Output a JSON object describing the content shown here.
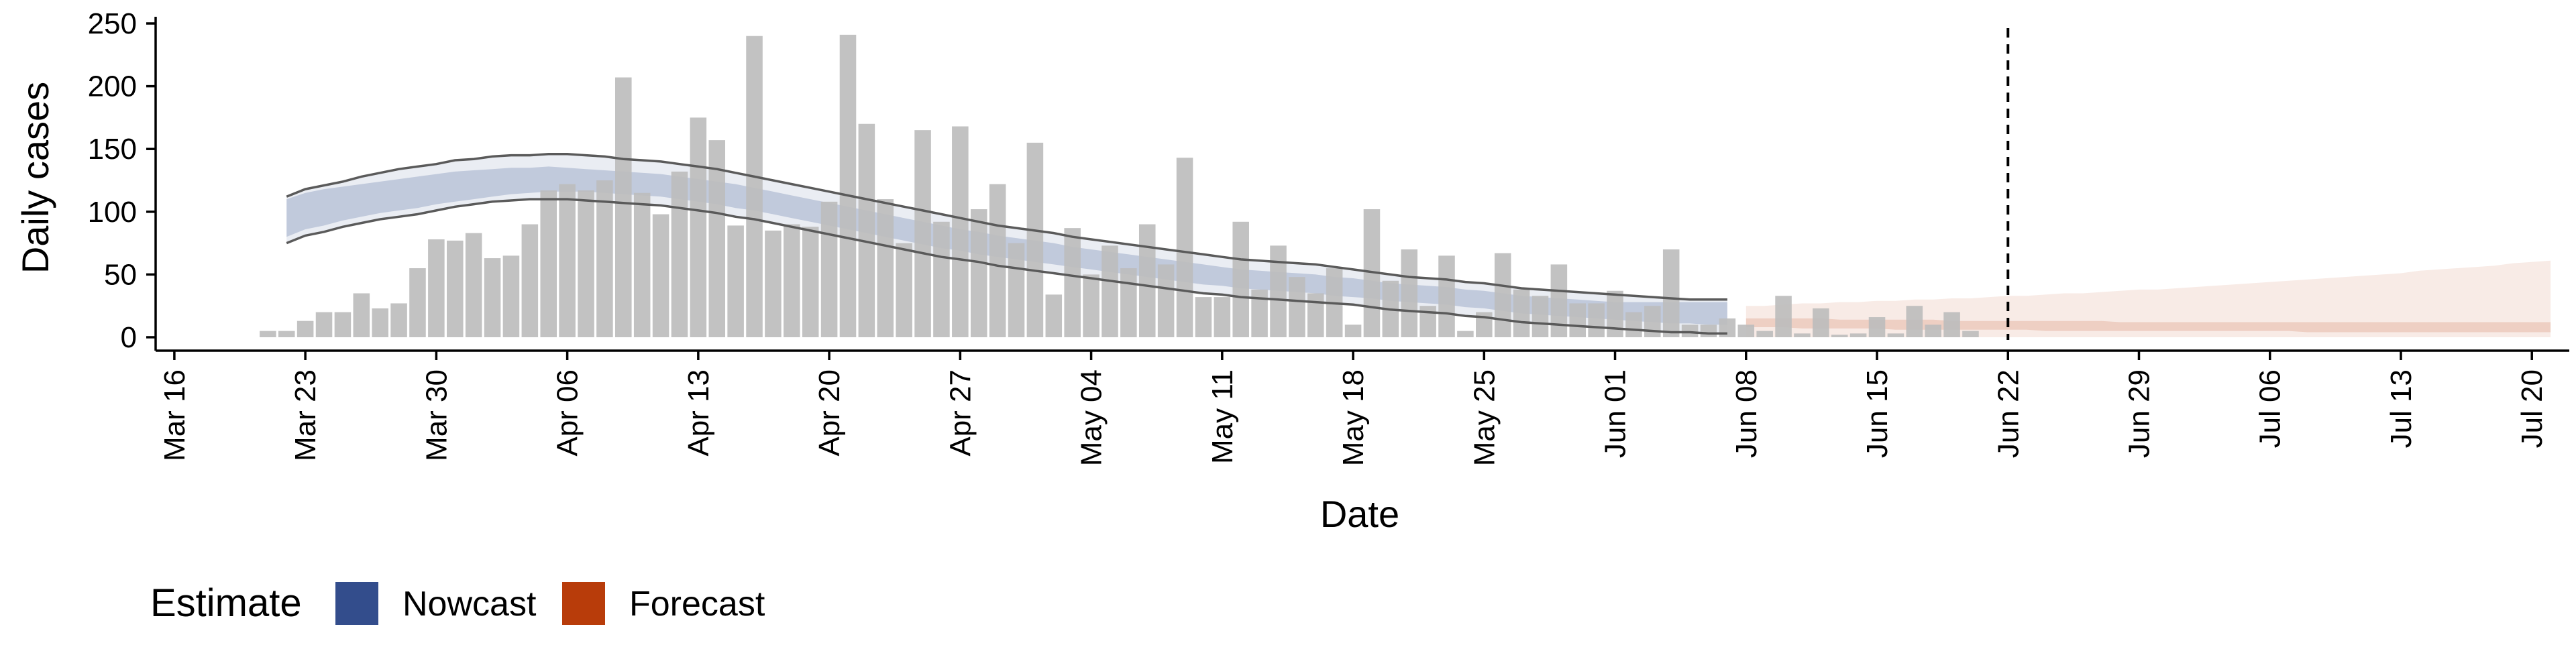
{
  "colors": {
    "bars": "#bdbdbd",
    "nowcast": "#334d8c",
    "forecast": "#b83c0a",
    "rt_line": "#5a5a5a",
    "vline": "#000000"
  },
  "chart_data": {
    "type": "bar",
    "xlabel": "Date",
    "ylabel": "Daily cases",
    "ylim": [
      0,
      250
    ],
    "y_ticks": [
      0,
      50,
      100,
      150,
      200,
      250
    ],
    "xlim": [
      "2020-03-15",
      "2020-07-22"
    ],
    "x_ticks": [
      "2020-03-16",
      "2020-03-23",
      "2020-03-30",
      "2020-04-06",
      "2020-04-13",
      "2020-04-20",
      "2020-04-27",
      "2020-05-04",
      "2020-05-11",
      "2020-05-18",
      "2020-05-25",
      "2020-06-01",
      "2020-06-08",
      "2020-06-15",
      "2020-06-22",
      "2020-06-29",
      "2020-07-06",
      "2020-07-13",
      "2020-07-20"
    ],
    "x_tick_labels": [
      "Mar 16",
      "Mar 23",
      "Mar 30",
      "Apr 06",
      "Apr 13",
      "Apr 20",
      "Apr 27",
      "May 04",
      "May 11",
      "May 18",
      "May 25",
      "Jun 01",
      "Jun 08",
      "Jun 15",
      "Jun 22",
      "Jun 29",
      "Jul 06",
      "Jul 13",
      "Jul 20"
    ],
    "grid": false,
    "vline_date": "2020-06-22",
    "legend": {
      "title": "Estimate",
      "position": "bottom-left",
      "items": [
        {
          "label": "Nowcast",
          "color": "#334d8c"
        },
        {
          "label": "Forecast",
          "color": "#b83c0a"
        }
      ]
    },
    "bars": {
      "start_date": "2020-03-21",
      "values": [
        5,
        5,
        13,
        20,
        20,
        35,
        23,
        27,
        55,
        78,
        77,
        83,
        63,
        65,
        90,
        117,
        122,
        117,
        125,
        207,
        115,
        98,
        132,
        175,
        157,
        89,
        240,
        85,
        90,
        88,
        108,
        241,
        170,
        110,
        75,
        165,
        92,
        168,
        102,
        122,
        75,
        155,
        34,
        87,
        50,
        73,
        55,
        90,
        58,
        143,
        32,
        32,
        92,
        38,
        73,
        48,
        35,
        55,
        10,
        102,
        45,
        70,
        25,
        65,
        5,
        20,
        67,
        38,
        33,
        58,
        27,
        27,
        37,
        20,
        25,
        70,
        10,
        10,
        15,
        10,
        5,
        33,
        3,
        23,
        2,
        3,
        16,
        3,
        25,
        10,
        20,
        5
      ]
    },
    "series": [
      {
        "name": "Nowcast",
        "start_date": "2020-03-22",
        "median": [
          95,
          100,
          103,
          106,
          109,
          111,
          113,
          115,
          118,
          120,
          121,
          123,
          124,
          124,
          125,
          125,
          124,
          123,
          122,
          121,
          120,
          119,
          117,
          115,
          112,
          110,
          107,
          104,
          101,
          98,
          95,
          92,
          89,
          86,
          83,
          80,
          77,
          75,
          72,
          70,
          68,
          66,
          64,
          62,
          60,
          58,
          56,
          54,
          52,
          50,
          48,
          46,
          45,
          44,
          43,
          42,
          40,
          39,
          37,
          35,
          34,
          33,
          32,
          30,
          29,
          27,
          25,
          24,
          23,
          22,
          21,
          20,
          20,
          19,
          19,
          19,
          18,
          18
        ],
        "band_low": [
          80,
          86,
          89,
          93,
          96,
          99,
          101,
          103,
          106,
          108,
          110,
          112,
          114,
          115,
          116,
          116,
          116,
          115,
          114,
          113,
          112,
          110,
          108,
          106,
          103,
          101,
          98,
          95,
          92,
          89,
          86,
          83,
          80,
          77,
          74,
          71,
          69,
          66,
          64,
          62,
          60,
          58,
          56,
          54,
          52,
          50,
          48,
          46,
          44,
          42,
          41,
          39,
          38,
          37,
          36,
          35,
          33,
          32,
          31,
          29,
          28,
          27,
          26,
          24,
          23,
          21,
          19,
          18,
          17,
          16,
          15,
          14,
          13,
          12,
          11,
          11,
          10,
          10
        ],
        "band_high": [
          110,
          115,
          118,
          120,
          122,
          124,
          126,
          128,
          130,
          132,
          133,
          134,
          135,
          135,
          136,
          135,
          134,
          133,
          132,
          131,
          130,
          128,
          126,
          124,
          122,
          119,
          116,
          113,
          110,
          107,
          104,
          101,
          98,
          95,
          92,
          89,
          86,
          84,
          81,
          79,
          77,
          75,
          72,
          70,
          68,
          66,
          64,
          62,
          60,
          58,
          56,
          54,
          53,
          52,
          51,
          50,
          48,
          47,
          45,
          43,
          42,
          41,
          40,
          38,
          37,
          35,
          33,
          32,
          31,
          30,
          29,
          28,
          28,
          28,
          28,
          28,
          28,
          28
        ],
        "outer_low": [
          75,
          81,
          84,
          88,
          91,
          94,
          96,
          98,
          101,
          104,
          106,
          108,
          109,
          110,
          110,
          110,
          109,
          108,
          107,
          106,
          105,
          103,
          101,
          99,
          96,
          94,
          91,
          88,
          85,
          82,
          79,
          76,
          73,
          70,
          67,
          64,
          62,
          60,
          57,
          55,
          53,
          51,
          49,
          47,
          45,
          43,
          41,
          39,
          37,
          35,
          34,
          32,
          31,
          30,
          29,
          28,
          27,
          26,
          24,
          22,
          21,
          20,
          19,
          17,
          16,
          14,
          12,
          11,
          10,
          9,
          8,
          7,
          6,
          5,
          4,
          4,
          3,
          3
        ],
        "outer_high": [
          112,
          118,
          121,
          124,
          128,
          131,
          134,
          136,
          138,
          141,
          142,
          144,
          145,
          145,
          146,
          146,
          145,
          144,
          142,
          141,
          140,
          138,
          136,
          134,
          131,
          128,
          125,
          122,
          119,
          116,
          113,
          110,
          107,
          104,
          101,
          98,
          95,
          92,
          89,
          87,
          85,
          83,
          80,
          78,
          76,
          74,
          72,
          70,
          68,
          66,
          64,
          62,
          61,
          60,
          59,
          58,
          56,
          54,
          52,
          50,
          48,
          47,
          46,
          44,
          43,
          41,
          39,
          38,
          37,
          36,
          35,
          34,
          33,
          32,
          31,
          30,
          30,
          30
        ]
      },
      {
        "name": "Forecast",
        "start_date": "2020-06-08",
        "median": [
          12,
          12,
          11,
          11,
          11,
          10,
          10,
          10,
          10,
          10,
          9,
          9,
          9,
          9,
          9,
          9,
          9,
          8,
          8,
          8,
          8,
          8,
          8,
          8,
          8,
          8,
          8,
          8,
          8,
          8,
          8,
          8,
          8,
          7,
          7,
          7,
          7,
          7,
          7,
          7,
          7,
          7,
          7,
          7
        ],
        "band_low": [
          8,
          8,
          8,
          7,
          7,
          7,
          7,
          7,
          6,
          6,
          6,
          6,
          6,
          6,
          6,
          6,
          5,
          5,
          5,
          5,
          5,
          5,
          5,
          5,
          5,
          5,
          5,
          5,
          5,
          5,
          4,
          4,
          4,
          4,
          4,
          4,
          4,
          4,
          4,
          4,
          4,
          4,
          4,
          4
        ],
        "band_high": [
          15,
          15,
          15,
          15,
          15,
          14,
          14,
          14,
          14,
          14,
          14,
          13,
          13,
          13,
          13,
          13,
          13,
          13,
          13,
          13,
          12,
          12,
          12,
          12,
          12,
          12,
          12,
          12,
          12,
          12,
          12,
          12,
          12,
          12,
          12,
          12,
          12,
          12,
          12,
          12,
          12,
          12,
          12,
          12
        ],
        "outer_low": [
          0,
          0,
          0,
          0,
          0,
          0,
          0,
          0,
          0,
          0,
          0,
          0,
          0,
          0,
          0,
          0,
          0,
          0,
          0,
          0,
          0,
          0,
          0,
          0,
          0,
          0,
          0,
          0,
          0,
          0,
          0,
          0,
          0,
          0,
          0,
          0,
          0,
          0,
          0,
          0,
          0,
          0,
          0,
          0
        ],
        "outer_high": [
          25,
          25,
          26,
          27,
          27,
          28,
          28,
          29,
          29,
          30,
          30,
          31,
          31,
          32,
          33,
          33,
          34,
          35,
          35,
          36,
          37,
          38,
          38,
          39,
          40,
          41,
          42,
          43,
          44,
          45,
          46,
          47,
          48,
          49,
          50,
          51,
          53,
          54,
          55,
          56,
          57,
          59,
          60,
          61
        ]
      }
    ]
  }
}
